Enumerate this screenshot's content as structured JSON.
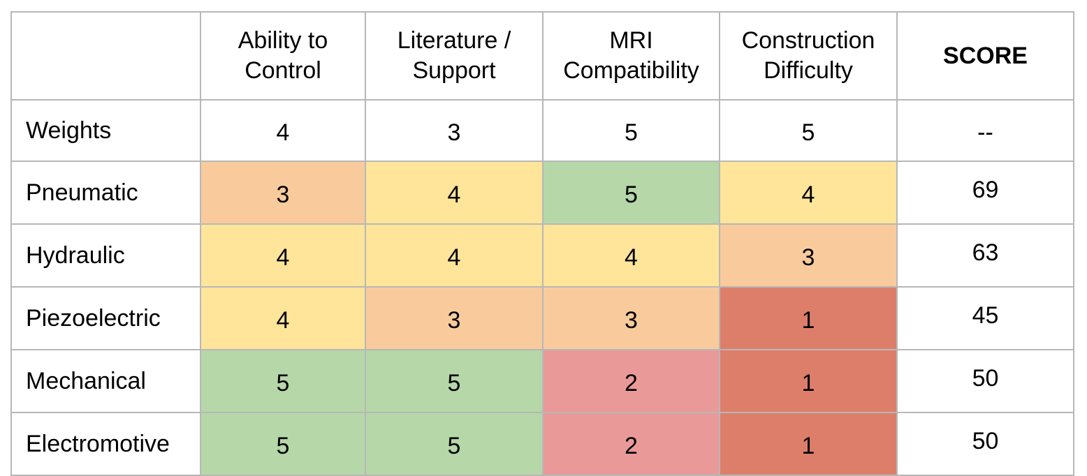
{
  "matrix": {
    "corner": "",
    "columns": [
      {
        "line1": "Ability to",
        "line2": "Control"
      },
      {
        "line1": "Literature /",
        "line2": "Support"
      },
      {
        "line1": "MRI",
        "line2": "Compatibility"
      },
      {
        "line1": "Construction",
        "line2": "Difficulty"
      }
    ],
    "score_header": "SCORE",
    "weights": {
      "label": "Weights",
      "values": [
        "4",
        "3",
        "5",
        "5"
      ],
      "score": "--"
    },
    "rows": [
      {
        "label": "Pneumatic",
        "values": [
          "3",
          "4",
          "5",
          "4"
        ],
        "score": "69"
      },
      {
        "label": "Hydraulic",
        "values": [
          "4",
          "4",
          "4",
          "3"
        ],
        "score": "63"
      },
      {
        "label": "Piezoelectric",
        "values": [
          "4",
          "3",
          "3",
          "1"
        ],
        "score": "45"
      },
      {
        "label": "Mechanical",
        "values": [
          "5",
          "5",
          "2",
          "1"
        ],
        "score": "50"
      },
      {
        "label": "Electromotive",
        "values": [
          "5",
          "5",
          "2",
          "1"
        ],
        "score": "50"
      }
    ],
    "rating_colors": {
      "5": "#b6d7a8",
      "4": "#ffe599",
      "3": "#f9cb9c",
      "2": "#ea9999",
      "1": "#dd7e6b"
    }
  }
}
